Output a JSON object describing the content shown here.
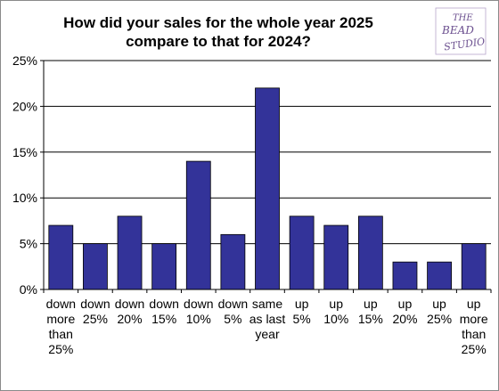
{
  "chart_data": {
    "type": "bar",
    "title": [
      "How did your sales for the whole year 2025",
      "compare to that for 2024?"
    ],
    "xlabel": "",
    "ylabel": "",
    "ylim": [
      0,
      25
    ],
    "y_ticks": [
      "0%",
      "5%",
      "10%",
      "15%",
      "20%",
      "25%"
    ],
    "grid": "horizontal",
    "legend": "none",
    "bar_color": "#333399",
    "categories": [
      [
        "down",
        "more",
        "than",
        "25%"
      ],
      [
        "down",
        "25%"
      ],
      [
        "down",
        "20%"
      ],
      [
        "down",
        "15%"
      ],
      [
        "down",
        "10%"
      ],
      [
        "down",
        "5%"
      ],
      [
        "same",
        "as last",
        "year"
      ],
      [
        "up",
        "5%"
      ],
      [
        "up",
        "10%"
      ],
      [
        "up",
        "15%"
      ],
      [
        "up",
        "20%"
      ],
      [
        "up",
        "25%"
      ],
      [
        "up",
        "more",
        "than",
        "25%"
      ]
    ],
    "values": [
      7,
      5,
      8,
      5,
      14,
      6,
      22,
      8,
      7,
      8,
      3,
      3,
      5
    ]
  },
  "logo": {
    "lines": [
      "THE",
      "BEAD",
      "STUDIO"
    ],
    "color": "#6b4f8f"
  }
}
